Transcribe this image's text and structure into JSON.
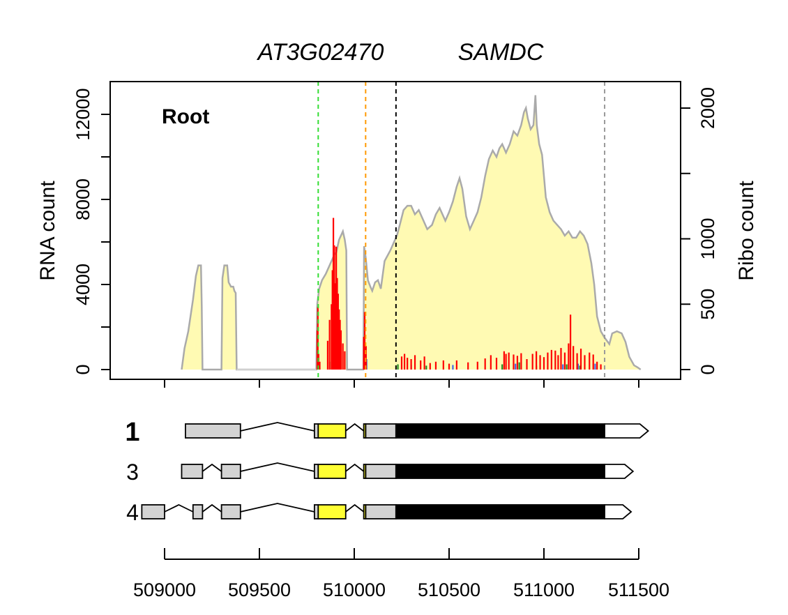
{
  "chart_data": {
    "type": "area",
    "title": {
      "gene_id": "AT3G02470",
      "gene_name": "SAMDC"
    },
    "tissue_label": "Root",
    "left_axis": {
      "label": "RNA count",
      "ylim": [
        0,
        13000
      ],
      "ticks": [
        "0",
        "4000",
        "8000",
        "12000"
      ]
    },
    "right_axis": {
      "label": "Ribo count",
      "ylim": [
        0,
        2080
      ],
      "ticks": [
        "0",
        "500",
        "1000",
        "2000"
      ]
    },
    "x_axis": {
      "xlim": [
        508880,
        511580
      ],
      "ticks": [
        "509000",
        "509500",
        "510000",
        "510500",
        "511000",
        "511500"
      ]
    },
    "colors": {
      "rna_fill": "#fffab3",
      "rna_line": "#aaaaaa",
      "ribo_frame1": "#ff0000",
      "ribo_frame2": "#228b22",
      "ribo_frame3": "#4169e1",
      "utr": "#d3d3d3",
      "uorf": "#ffff33",
      "cds": "#000000"
    },
    "rna_coverage": [
      [
        509090,
        0
      ],
      [
        509105,
        1000
      ],
      [
        509125,
        1800
      ],
      [
        509150,
        3300
      ],
      [
        509165,
        4400
      ],
      [
        509178,
        4900
      ],
      [
        509192,
        4900
      ],
      [
        509196,
        3000
      ],
      [
        509200,
        0
      ],
      [
        509300,
        0
      ],
      [
        509305,
        4300
      ],
      [
        509315,
        4900
      ],
      [
        509330,
        4900
      ],
      [
        509338,
        4100
      ],
      [
        509350,
        3900
      ],
      [
        509362,
        3900
      ],
      [
        509368,
        3700
      ],
      [
        509375,
        3600
      ],
      [
        509380,
        0
      ],
      [
        509800,
        0
      ],
      [
        509805,
        3100
      ],
      [
        509815,
        3800
      ],
      [
        509830,
        4200
      ],
      [
        509850,
        4500
      ],
      [
        509870,
        4900
      ],
      [
        509880,
        5100
      ],
      [
        509895,
        5400
      ],
      [
        509905,
        5500
      ],
      [
        509920,
        6100
      ],
      [
        509940,
        6500
      ],
      [
        509950,
        6100
      ],
      [
        509958,
        5600
      ],
      [
        509962,
        0
      ],
      [
        510048,
        0
      ],
      [
        510052,
        5800
      ],
      [
        510060,
        5300
      ],
      [
        510072,
        4200
      ],
      [
        510085,
        3900
      ],
      [
        510095,
        3700
      ],
      [
        510110,
        4100
      ],
      [
        510125,
        4200
      ],
      [
        510140,
        3800
      ],
      [
        510160,
        5100
      ],
      [
        510190,
        5600
      ],
      [
        510210,
        6000
      ],
      [
        510225,
        6300
      ],
      [
        510240,
        6800
      ],
      [
        510260,
        7500
      ],
      [
        510280,
        7700
      ],
      [
        510300,
        7700
      ],
      [
        510320,
        7300
      ],
      [
        510340,
        7500
      ],
      [
        510360,
        7100
      ],
      [
        510385,
        6600
      ],
      [
        510410,
        6800
      ],
      [
        510430,
        7300
      ],
      [
        510450,
        7600
      ],
      [
        510465,
        7300
      ],
      [
        510480,
        7000
      ],
      [
        510500,
        7400
      ],
      [
        510520,
        7900
      ],
      [
        510540,
        8600
      ],
      [
        510555,
        9000
      ],
      [
        510570,
        8500
      ],
      [
        510590,
        7200
      ],
      [
        510610,
        6600
      ],
      [
        510630,
        7000
      ],
      [
        510650,
        7400
      ],
      [
        510670,
        8100
      ],
      [
        510690,
        9100
      ],
      [
        510710,
        9900
      ],
      [
        510730,
        10300
      ],
      [
        510750,
        10000
      ],
      [
        510765,
        10400
      ],
      [
        510780,
        10600
      ],
      [
        510800,
        10200
      ],
      [
        510820,
        10600
      ],
      [
        510840,
        11200
      ],
      [
        510860,
        11000
      ],
      [
        510880,
        11500
      ],
      [
        510895,
        12100
      ],
      [
        510905,
        12300
      ],
      [
        510915,
        11800
      ],
      [
        510930,
        11300
      ],
      [
        510945,
        11500
      ],
      [
        510955,
        12900
      ],
      [
        510962,
        11500
      ],
      [
        510975,
        10600
      ],
      [
        510990,
        10100
      ],
      [
        511010,
        8100
      ],
      [
        511030,
        7400
      ],
      [
        511050,
        7000
      ],
      [
        511070,
        6800
      ],
      [
        511090,
        6600
      ],
      [
        511110,
        6300
      ],
      [
        511130,
        6500
      ],
      [
        511150,
        6200
      ],
      [
        511170,
        6200
      ],
      [
        511190,
        6500
      ],
      [
        511210,
        6300
      ],
      [
        511230,
        5900
      ],
      [
        511250,
        5000
      ],
      [
        511265,
        4000
      ],
      [
        511280,
        2500
      ],
      [
        511300,
        1800
      ],
      [
        511320,
        1500
      ],
      [
        511345,
        1200
      ],
      [
        511360,
        1700
      ],
      [
        511385,
        1800
      ],
      [
        511410,
        1700
      ],
      [
        511430,
        1300
      ],
      [
        511450,
        600
      ],
      [
        511475,
        200
      ],
      [
        511495,
        100
      ],
      [
        511510,
        0
      ]
    ],
    "ribo_reads": {
      "frame1": [
        [
          509805,
          300
        ],
        [
          509808,
          480
        ],
        [
          509812,
          120
        ],
        [
          509818,
          60
        ],
        [
          509860,
          220
        ],
        [
          509870,
          380
        ],
        [
          509880,
          500
        ],
        [
          509885,
          760
        ],
        [
          509890,
          1160
        ],
        [
          509895,
          950
        ],
        [
          509900,
          660
        ],
        [
          509905,
          940
        ],
        [
          509910,
          700
        ],
        [
          509915,
          580
        ],
        [
          509920,
          460
        ],
        [
          509925,
          380
        ],
        [
          509930,
          300
        ],
        [
          509940,
          200
        ],
        [
          509950,
          140
        ],
        [
          510050,
          250
        ],
        [
          510055,
          440
        ],
        [
          510062,
          180
        ],
        [
          510250,
          100
        ],
        [
          510265,
          120
        ],
        [
          510280,
          90
        ],
        [
          510300,
          80
        ],
        [
          510320,
          110
        ],
        [
          510350,
          70
        ],
        [
          510370,
          100
        ],
        [
          510400,
          50
        ],
        [
          510430,
          60
        ],
        [
          510470,
          70
        ],
        [
          510500,
          45
        ],
        [
          510540,
          70
        ],
        [
          510600,
          55
        ],
        [
          510650,
          60
        ],
        [
          510690,
          85
        ],
        [
          510720,
          110
        ],
        [
          510750,
          90
        ],
        [
          510790,
          140
        ],
        [
          510800,
          120
        ],
        [
          510815,
          130
        ],
        [
          510840,
          115
        ],
        [
          510860,
          105
        ],
        [
          510880,
          125
        ],
        [
          510910,
          80
        ],
        [
          510940,
          120
        ],
        [
          510960,
          140
        ],
        [
          510980,
          110
        ],
        [
          511000,
          95
        ],
        [
          511020,
          130
        ],
        [
          511040,
          150
        ],
        [
          511060,
          145
        ],
        [
          511075,
          110
        ],
        [
          511090,
          165
        ],
        [
          511110,
          130
        ],
        [
          511130,
          200
        ],
        [
          511140,
          420
        ],
        [
          511155,
          180
        ],
        [
          511175,
          125
        ],
        [
          511195,
          160
        ],
        [
          511215,
          110
        ],
        [
          511240,
          130
        ],
        [
          511260,
          115
        ],
        [
          511280,
          60
        ],
        [
          511300,
          40
        ]
      ],
      "frame2": [
        [
          509870,
          60
        ],
        [
          509900,
          100
        ],
        [
          509915,
          70
        ],
        [
          510230,
          40
        ],
        [
          510380,
          30
        ],
        [
          510780,
          40
        ],
        [
          510870,
          55
        ],
        [
          510960,
          30
        ],
        [
          511120,
          40
        ],
        [
          511190,
          30
        ]
      ],
      "frame3": [
        [
          509890,
          70
        ],
        [
          509910,
          50
        ],
        [
          510065,
          80
        ],
        [
          510300,
          35
        ],
        [
          510520,
          35
        ],
        [
          510850,
          45
        ],
        [
          511100,
          40
        ],
        [
          511180,
          45
        ],
        [
          511270,
          45
        ]
      ]
    },
    "vertical_markers": [
      {
        "x": 509810,
        "color": "#33dd33"
      },
      {
        "x": 510060,
        "color": "#ff9900"
      },
      {
        "x": 510220,
        "color": "#000000"
      },
      {
        "x": 511320,
        "color": "#999999"
      }
    ],
    "transcripts": [
      {
        "label": "1",
        "bold": true,
        "utr_exons": [
          [
            509110,
            509400
          ],
          [
            509790,
            509810
          ],
          [
            510060,
            510220
          ]
        ],
        "uorf": [
          [
            509810,
            509955
          ],
          [
            510050,
            510060
          ]
        ],
        "cds": [
          510220,
          511320
        ],
        "three_utr": [
          511320,
          511550
        ],
        "introns": [
          [
            509400,
            509790
          ],
          [
            509955,
            510050
          ]
        ]
      },
      {
        "label": "3",
        "bold": false,
        "utr_exons": [
          [
            509090,
            509200
          ],
          [
            509300,
            509400
          ],
          [
            509790,
            509810
          ],
          [
            510060,
            510220
          ]
        ],
        "uorf": [
          [
            509810,
            509955
          ],
          [
            510050,
            510060
          ]
        ],
        "cds": [
          510220,
          511320
        ],
        "three_utr": [
          511320,
          511470
        ],
        "introns": [
          [
            509200,
            509300
          ],
          [
            509400,
            509790
          ],
          [
            509955,
            510050
          ]
        ]
      },
      {
        "label": "4",
        "bold": false,
        "utr_exons": [
          [
            508880,
            509000
          ],
          [
            509150,
            509200
          ],
          [
            509300,
            509400
          ],
          [
            509790,
            509810
          ],
          [
            510060,
            510220
          ]
        ],
        "uorf": [
          [
            509810,
            509955
          ],
          [
            510050,
            510060
          ]
        ],
        "cds": [
          510220,
          511320
        ],
        "three_utr": [
          511320,
          511460
        ],
        "introns": [
          [
            509000,
            509150
          ],
          [
            509200,
            509300
          ],
          [
            509400,
            509790
          ],
          [
            509955,
            510050
          ]
        ]
      }
    ]
  }
}
